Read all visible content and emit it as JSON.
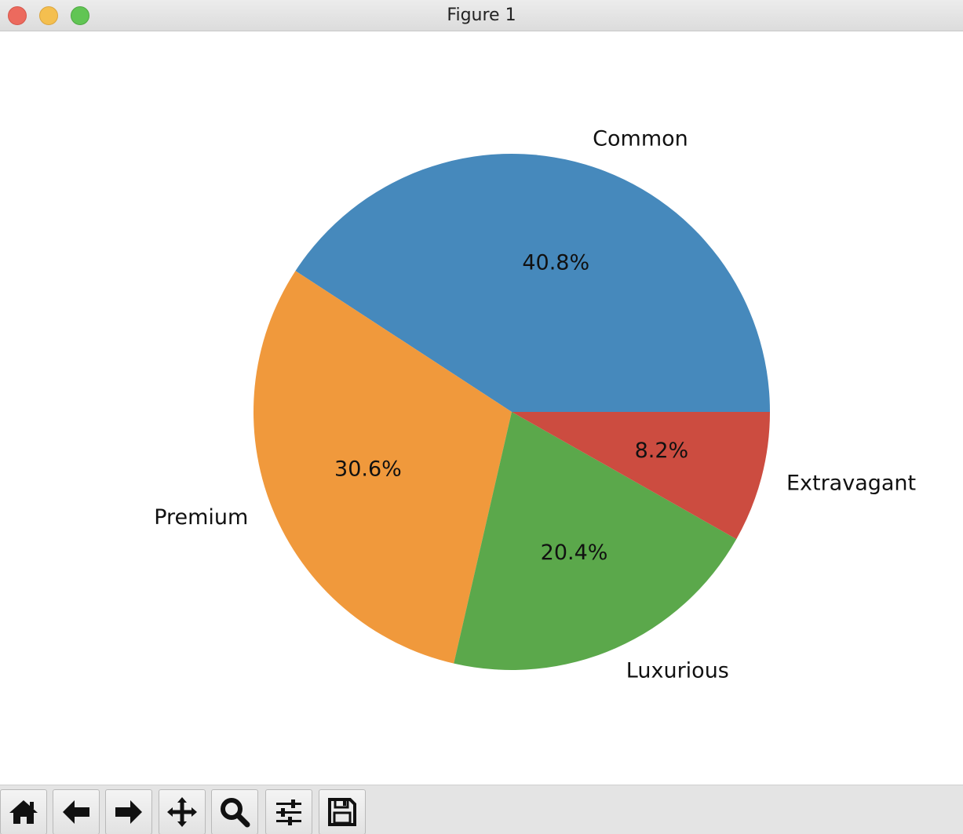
{
  "window": {
    "title": "Figure 1"
  },
  "toolbar": {
    "buttons": [
      {
        "name": "home-button",
        "icon": "home-icon"
      },
      {
        "name": "back-button",
        "icon": "arrow-left-icon"
      },
      {
        "name": "forward-button",
        "icon": "arrow-right-icon"
      },
      {
        "name": "pan-button",
        "icon": "move-icon"
      },
      {
        "name": "zoom-button",
        "icon": "magnifier-icon"
      },
      {
        "name": "configure-subplots-button",
        "icon": "sliders-icon"
      },
      {
        "name": "save-button",
        "icon": "floppy-disk-icon"
      }
    ]
  },
  "chart_data": {
    "type": "pie",
    "title": "",
    "labels": [
      "Common",
      "Premium",
      "Luxurious",
      "Extravagant"
    ],
    "values": [
      40.8,
      30.6,
      20.4,
      8.2
    ],
    "autopct_labels": [
      "40.8%",
      "30.6%",
      "20.4%",
      "8.2%"
    ],
    "colors": [
      "#4689bc",
      "#f0993c",
      "#5ba84b",
      "#cc4c40"
    ],
    "start_angle_deg": 0,
    "direction": "counterclockwise"
  }
}
